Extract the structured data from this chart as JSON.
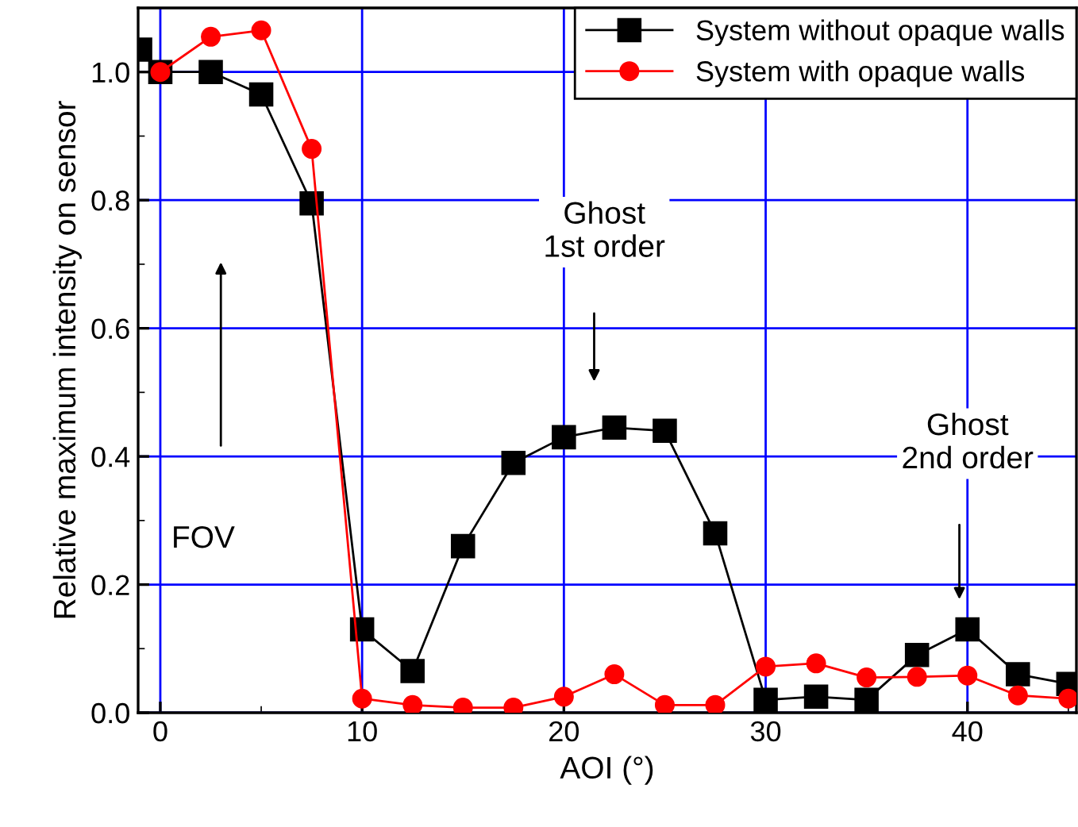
{
  "chart_data": {
    "type": "line",
    "xlabel": "AOI (°)",
    "ylabel": "Relative maximum intensity on sensor",
    "x": [
      -1,
      0,
      2.5,
      5,
      7.5,
      10,
      12.5,
      15,
      17.5,
      20,
      22.5,
      25,
      27.5,
      30,
      32.5,
      35,
      37.5,
      40,
      42.5,
      45
    ],
    "series": [
      {
        "name": "System without opaque walls",
        "color": "#000000",
        "marker": "square",
        "values": [
          1.035,
          1.0,
          1.0,
          0.965,
          0.795,
          0.13,
          0.065,
          0.26,
          0.39,
          0.43,
          0.445,
          0.44,
          0.28,
          0.02,
          0.025,
          0.02,
          0.09,
          0.13,
          0.06,
          0.045
        ]
      },
      {
        "name": "System with opaque walls",
        "color": "#ff0000",
        "marker": "circle",
        "x": [
          0,
          2.5,
          5,
          7.5,
          10,
          12.5,
          15,
          17.5,
          20,
          22.5,
          25,
          27.5,
          30,
          32.5,
          35,
          37.5,
          40,
          42.5,
          45
        ],
        "values": [
          1.0,
          1.055,
          1.065,
          0.88,
          0.022,
          0.012,
          0.008,
          0.008,
          0.025,
          0.06,
          0.012,
          0.012,
          0.072,
          0.077,
          0.055,
          0.056,
          0.058,
          0.027,
          0.022
        ]
      }
    ],
    "xlim": [
      -1.1,
      45.4
    ],
    "xticks": [
      0,
      10,
      20,
      30,
      40
    ],
    "ylim": [
      0,
      1.1
    ],
    "yticks": [
      {
        "value": 0,
        "label": "0.0"
      },
      0.2,
      0.4,
      0.6,
      0.8,
      {
        "value": 1,
        "label": "1.0"
      }
    ],
    "grid": true,
    "legend": "top right",
    "annotations": [
      "FOV",
      "Ghost\n1st order",
      "Ghost\n2nd order"
    ]
  }
}
